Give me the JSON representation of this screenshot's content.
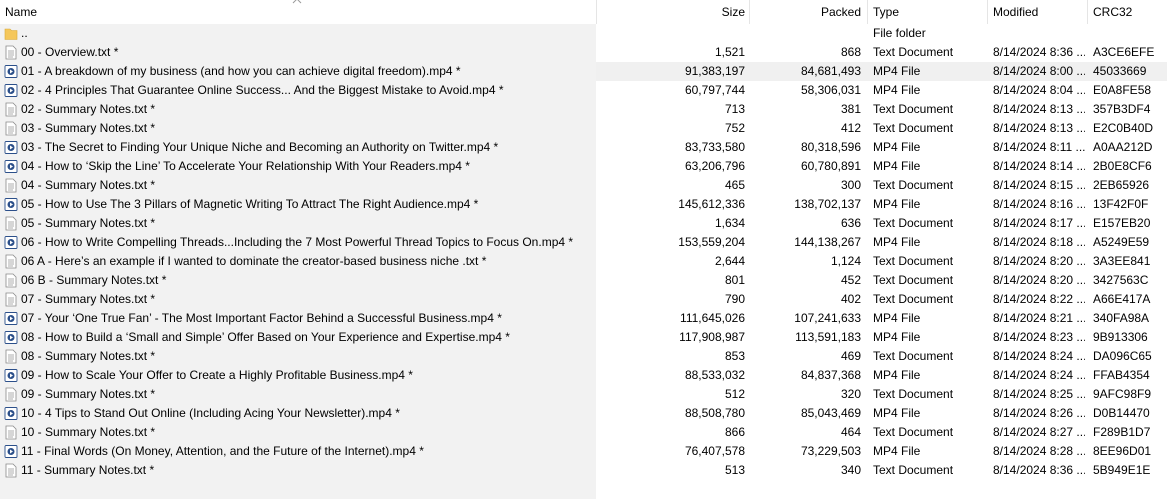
{
  "columns": {
    "name": "Name",
    "size": "Size",
    "packed": "Packed",
    "type": "Type",
    "modified": "Modified",
    "crc": "CRC32"
  },
  "rows": [
    {
      "icon": "folder-icon",
      "name": "..",
      "size": "",
      "packed": "",
      "type": "File folder",
      "modified": "",
      "crc": ""
    },
    {
      "icon": "text-file-icon",
      "name": "00 - Overview.txt *",
      "size": "1,521",
      "packed": "868",
      "type": "Text Document",
      "modified": "8/14/2024 8:36 ...",
      "crc": "A3CE6EFE"
    },
    {
      "icon": "video-file-icon",
      "name": "01 - A breakdown of my business (and how you can achieve digital freedom).mp4 *",
      "size": "91,383,197",
      "packed": "84,681,493",
      "type": "MP4 File",
      "modified": "8/14/2024 8:00 ...",
      "crc": "45033669"
    },
    {
      "icon": "video-file-icon",
      "name": "02 - 4 Principles That Guarantee Online Success... And the Biggest Mistake to Avoid.mp4 *",
      "size": "60,797,744",
      "packed": "58,306,031",
      "type": "MP4 File",
      "modified": "8/14/2024 8:04 ...",
      "crc": "E0A8FE58"
    },
    {
      "icon": "text-file-icon",
      "name": "02 - Summary Notes.txt *",
      "size": "713",
      "packed": "381",
      "type": "Text Document",
      "modified": "8/14/2024 8:13 ...",
      "crc": "357B3DF4"
    },
    {
      "icon": "text-file-icon",
      "name": "03 - Summary Notes.txt *",
      "size": "752",
      "packed": "412",
      "type": "Text Document",
      "modified": "8/14/2024 8:13 ...",
      "crc": "E2C0B40D"
    },
    {
      "icon": "video-file-icon",
      "name": "03 - The Secret to Finding Your Unique Niche and Becoming an Authority on Twitter.mp4 *",
      "size": "83,733,580",
      "packed": "80,318,596",
      "type": "MP4 File",
      "modified": "8/14/2024 8:11 ...",
      "crc": "A0AA212D"
    },
    {
      "icon": "video-file-icon",
      "name": "04 - How to ‘Skip the Line’ To Accelerate Your Relationship With Your Readers.mp4 *",
      "size": "63,206,796",
      "packed": "60,780,891",
      "type": "MP4 File",
      "modified": "8/14/2024 8:14 ...",
      "crc": "2B0E8CF6"
    },
    {
      "icon": "text-file-icon",
      "name": "04 - Summary Notes.txt *",
      "size": "465",
      "packed": "300",
      "type": "Text Document",
      "modified": "8/14/2024 8:15 ...",
      "crc": "2EB65926"
    },
    {
      "icon": "video-file-icon",
      "name": "05 - How to Use The 3 Pillars of Magnetic Writing To Attract The Right Audience.mp4 *",
      "size": "145,612,336",
      "packed": "138,702,137",
      "type": "MP4 File",
      "modified": "8/14/2024 8:16 ...",
      "crc": "13F42F0F"
    },
    {
      "icon": "text-file-icon",
      "name": "05 - Summary Notes.txt *",
      "size": "1,634",
      "packed": "636",
      "type": "Text Document",
      "modified": "8/14/2024 8:17 ...",
      "crc": "E157EB20"
    },
    {
      "icon": "video-file-icon",
      "name": "06 - How to Write Compelling Threads...Including the 7 Most Powerful Thread Topics to Focus On.mp4 *",
      "size": "153,559,204",
      "packed": "144,138,267",
      "type": "MP4 File",
      "modified": "8/14/2024 8:18 ...",
      "crc": "A5249E59"
    },
    {
      "icon": "text-file-icon",
      "name": "06 A - Here’s an example if I wanted to dominate the creator-based business niche .txt *",
      "size": "2,644",
      "packed": "1,124",
      "type": "Text Document",
      "modified": "8/14/2024 8:20 ...",
      "crc": "3A3EE841"
    },
    {
      "icon": "text-file-icon",
      "name": "06 B - Summary Notes.txt *",
      "size": "801",
      "packed": "452",
      "type": "Text Document",
      "modified": "8/14/2024 8:20 ...",
      "crc": "3427563C"
    },
    {
      "icon": "text-file-icon",
      "name": "07 - Summary Notes.txt *",
      "size": "790",
      "packed": "402",
      "type": "Text Document",
      "modified": "8/14/2024 8:22 ...",
      "crc": "A66E417A"
    },
    {
      "icon": "video-file-icon",
      "name": "07 - Your ‘One True Fan’ - The Most Important Factor Behind a Successful Business.mp4 *",
      "size": "111,645,026",
      "packed": "107,241,633",
      "type": "MP4 File",
      "modified": "8/14/2024 8:21 ...",
      "crc": "340FA98A"
    },
    {
      "icon": "video-file-icon",
      "name": "08 - How to Build a ‘Small and Simple’ Offer Based on Your Experience and Expertise.mp4 *",
      "size": "117,908,987",
      "packed": "113,591,183",
      "type": "MP4 File",
      "modified": "8/14/2024 8:23 ...",
      "crc": "9B913306"
    },
    {
      "icon": "text-file-icon",
      "name": "08 - Summary Notes.txt *",
      "size": "853",
      "packed": "469",
      "type": "Text Document",
      "modified": "8/14/2024 8:24 ...",
      "crc": "DA096C65"
    },
    {
      "icon": "video-file-icon",
      "name": "09 - How to Scale Your Offer to Create a Highly Profitable Business.mp4 *",
      "size": "88,533,032",
      "packed": "84,837,368",
      "type": "MP4 File",
      "modified": "8/14/2024 8:24 ...",
      "crc": "FFAB4354"
    },
    {
      "icon": "text-file-icon",
      "name": "09 - Summary Notes.txt *",
      "size": "512",
      "packed": "320",
      "type": "Text Document",
      "modified": "8/14/2024 8:25 ...",
      "crc": "9AFC98F9"
    },
    {
      "icon": "video-file-icon",
      "name": "10 - 4 Tips to Stand Out Online (Including Acing Your Newsletter).mp4 *",
      "size": "88,508,780",
      "packed": "85,043,469",
      "type": "MP4 File",
      "modified": "8/14/2024 8:26 ...",
      "crc": "D0B14470"
    },
    {
      "icon": "text-file-icon",
      "name": "10 - Summary Notes.txt *",
      "size": "866",
      "packed": "464",
      "type": "Text Document",
      "modified": "8/14/2024 8:27 ...",
      "crc": "F289B1D7"
    },
    {
      "icon": "video-file-icon",
      "name": "11 - Final Words (On Money, Attention, and the Future of the Internet).mp4 *",
      "size": "76,407,578",
      "packed": "73,229,503",
      "type": "MP4 File",
      "modified": "8/14/2024 8:28 ...",
      "crc": "8EE96D01"
    },
    {
      "icon": "text-file-icon",
      "name": "11 - Summary Notes.txt *",
      "size": "513",
      "packed": "340",
      "type": "Text Document",
      "modified": "8/14/2024 8:36 ...",
      "crc": "5B949E1E"
    }
  ],
  "hovered_row": 2,
  "colors": {
    "name_column_bg": "#f2f2f2",
    "hover_bg": "#f0f0f0",
    "header_separator": "#e5e5e5",
    "folder": "#f5c75a",
    "video_icon": "#2b4f8a"
  }
}
